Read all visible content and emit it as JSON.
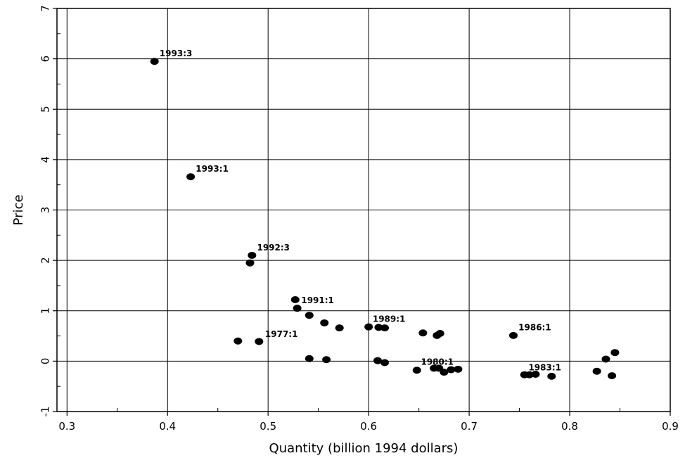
{
  "chart_data": {
    "type": "scatter",
    "xlabel": "Quantity (billion 1994 dollars)",
    "ylabel": "Price",
    "xlim": [
      0.29,
      0.9
    ],
    "ylim": [
      -1,
      7
    ],
    "xticks": [
      "0.3",
      "0.4",
      "0.5",
      "0.6",
      "0.7",
      "0.8",
      "0.9"
    ],
    "yticks": [
      "-1",
      "0",
      "1",
      "2",
      "3",
      "4",
      "5",
      "6",
      "7"
    ],
    "grid": true,
    "marker_color": "#000000",
    "points": [
      {
        "x": 0.387,
        "y": 5.95
      },
      {
        "x": 0.423,
        "y": 3.66
      },
      {
        "x": 0.484,
        "y": 2.1
      },
      {
        "x": 0.482,
        "y": 1.95
      },
      {
        "x": 0.527,
        "y": 1.22
      },
      {
        "x": 0.529,
        "y": 1.05
      },
      {
        "x": 0.541,
        "y": 0.91
      },
      {
        "x": 0.556,
        "y": 0.76
      },
      {
        "x": 0.571,
        "y": 0.66
      },
      {
        "x": 0.47,
        "y": 0.4
      },
      {
        "x": 0.491,
        "y": 0.39
      },
      {
        "x": 0.541,
        "y": 0.05
      },
      {
        "x": 0.558,
        "y": 0.03
      },
      {
        "x": 0.6,
        "y": 0.68
      },
      {
        "x": 0.61,
        "y": 0.67
      },
      {
        "x": 0.616,
        "y": 0.66
      },
      {
        "x": 0.609,
        "y": 0.01
      },
      {
        "x": 0.616,
        "y": -0.03
      },
      {
        "x": 0.648,
        "y": -0.18
      },
      {
        "x": 0.654,
        "y": 0.56
      },
      {
        "x": 0.668,
        "y": 0.51
      },
      {
        "x": 0.671,
        "y": 0.55
      },
      {
        "x": 0.665,
        "y": -0.14
      },
      {
        "x": 0.67,
        "y": -0.14
      },
      {
        "x": 0.675,
        "y": -0.22
      },
      {
        "x": 0.682,
        "y": -0.17
      },
      {
        "x": 0.689,
        "y": -0.16
      },
      {
        "x": 0.744,
        "y": 0.51
      },
      {
        "x": 0.755,
        "y": -0.27
      },
      {
        "x": 0.76,
        "y": -0.27
      },
      {
        "x": 0.766,
        "y": -0.26
      },
      {
        "x": 0.782,
        "y": -0.3
      },
      {
        "x": 0.827,
        "y": -0.2
      },
      {
        "x": 0.836,
        "y": 0.04
      },
      {
        "x": 0.842,
        "y": -0.29
      },
      {
        "x": 0.845,
        "y": 0.17
      }
    ],
    "annotations": [
      {
        "text": "1993:3",
        "x": 0.392,
        "y": 6.05
      },
      {
        "text": "1993:1",
        "x": 0.428,
        "y": 3.76
      },
      {
        "text": "1992:3",
        "x": 0.489,
        "y": 2.2
      },
      {
        "text": "1991:1",
        "x": 0.533,
        "y": 1.15
      },
      {
        "text": "1977:1",
        "x": 0.497,
        "y": 0.48
      },
      {
        "text": "1989:1",
        "x": 0.604,
        "y": 0.78
      },
      {
        "text": "1980:1",
        "x": 0.652,
        "y": -0.07
      },
      {
        "text": "1986:1",
        "x": 0.749,
        "y": 0.61
      },
      {
        "text": "1983:1",
        "x": 0.759,
        "y": -0.18
      }
    ]
  }
}
